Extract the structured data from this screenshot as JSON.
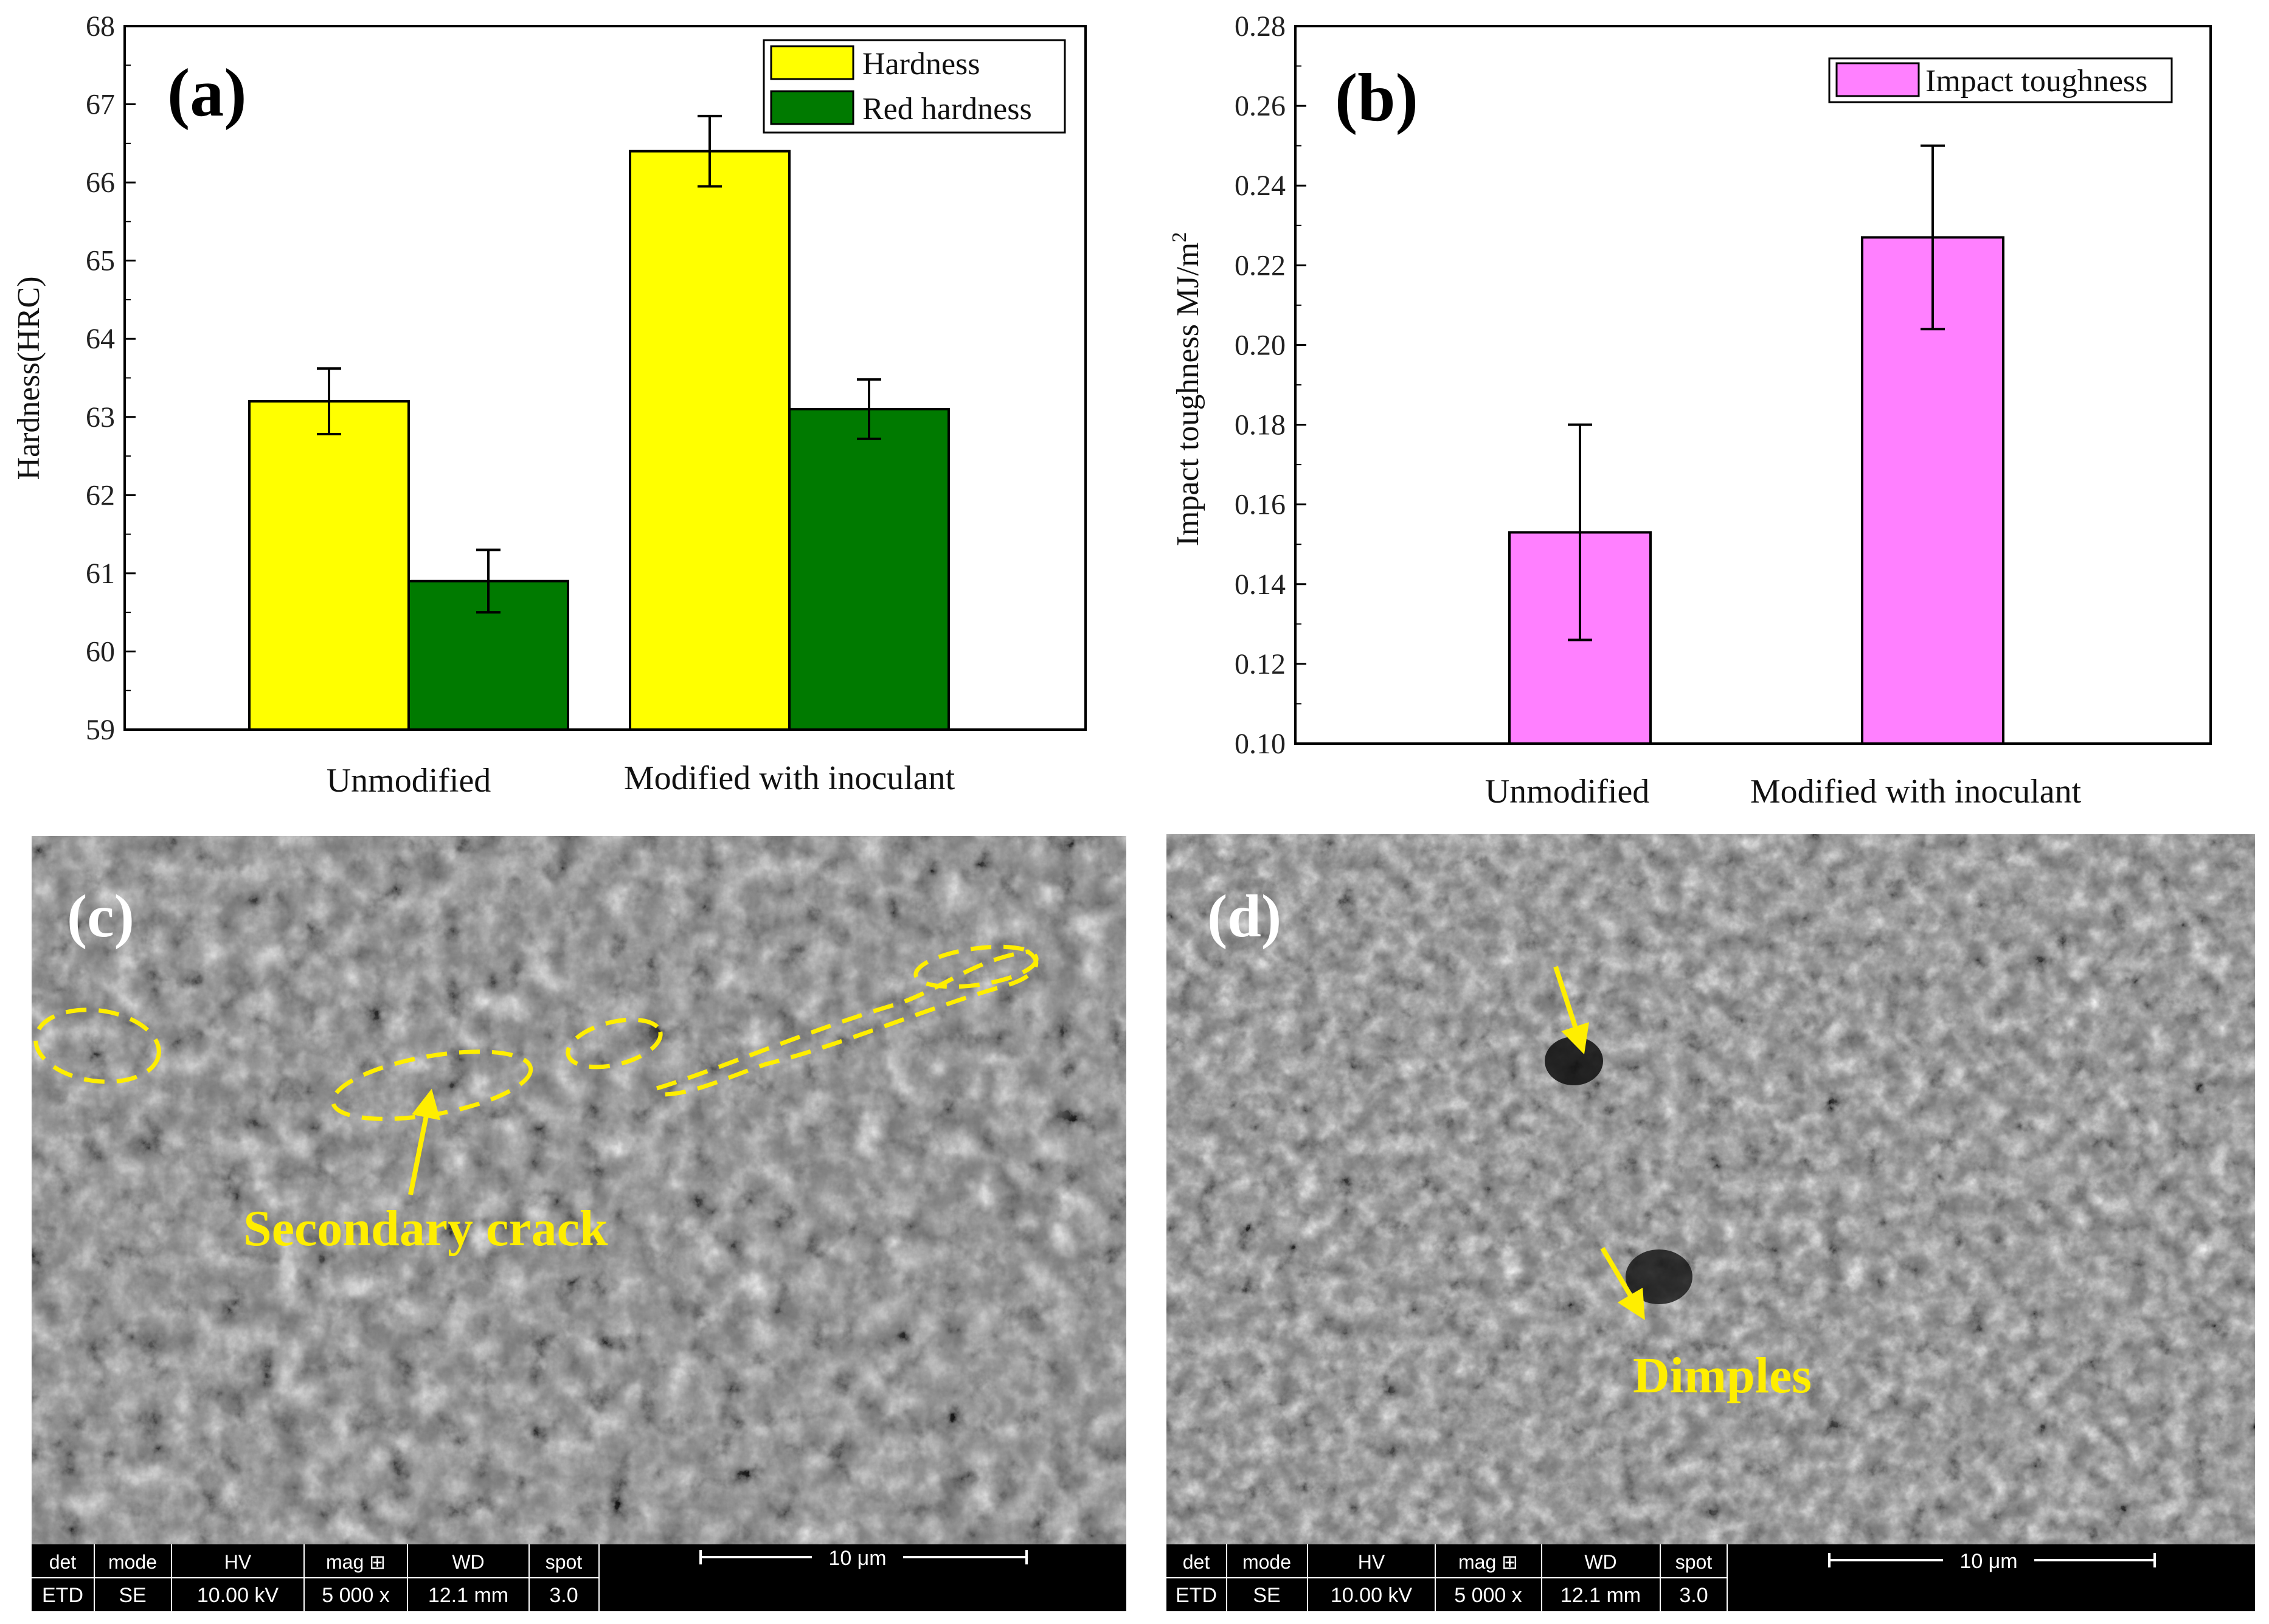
{
  "chart_data": [
    {
      "panel": "(a)",
      "type": "bar",
      "title": "",
      "xlabel": "",
      "ylabel": "Hardness(HRC)",
      "ylim": [
        59,
        68
      ],
      "yticks": [
        "59",
        "60",
        "61",
        "62",
        "63",
        "64",
        "65",
        "66",
        "67",
        "68"
      ],
      "categories": [
        "Unmodified",
        "Modified with inoculant"
      ],
      "series": [
        {
          "name": "Hardness",
          "color": "#ffff00",
          "values": [
            63.2,
            66.4
          ],
          "errors": [
            0.42,
            0.45
          ]
        },
        {
          "name": "Red hardness",
          "color": "#007a00",
          "values": [
            60.9,
            63.1
          ],
          "errors": [
            0.4,
            0.38
          ]
        }
      ],
      "legend": "top-right"
    },
    {
      "panel": "(b)",
      "type": "bar",
      "title": "",
      "xlabel": "",
      "ylabel": "Impact toughness MJ/m",
      "ylabel_sup": "2",
      "ylim": [
        0.1,
        0.28
      ],
      "yticks": [
        "0.10",
        "0.12",
        "0.14",
        "0.16",
        "0.18",
        "0.20",
        "0.22",
        "0.24",
        "0.26",
        "0.28"
      ],
      "categories": [
        "Unmodified",
        "Modified with inoculant"
      ],
      "series": [
        {
          "name": "Impact toughness",
          "color": "#ff80ff",
          "values": [
            0.153,
            0.227
          ],
          "errors": [
            0.027,
            0.023
          ]
        }
      ],
      "legend": "top-right"
    }
  ],
  "sem_images": [
    {
      "panel": "(c)",
      "annotation": "Secondary crack",
      "scalebar": {
        "headers": [
          "det",
          "mode",
          "HV",
          "mag ⊞",
          "WD",
          "spot"
        ],
        "values": [
          "ETD",
          "SE",
          "10.00 kV",
          "5 000 x",
          "12.1 mm",
          "3.0"
        ],
        "scale": "10 μm"
      }
    },
    {
      "panel": "(d)",
      "annotation": "Dimples",
      "scalebar": {
        "headers": [
          "det",
          "mode",
          "HV",
          "mag ⊞",
          "WD",
          "spot"
        ],
        "values": [
          "ETD",
          "SE",
          "10.00 kV",
          "5 000 x",
          "12.1 mm",
          "3.0"
        ],
        "scale": "10 μm"
      }
    }
  ]
}
